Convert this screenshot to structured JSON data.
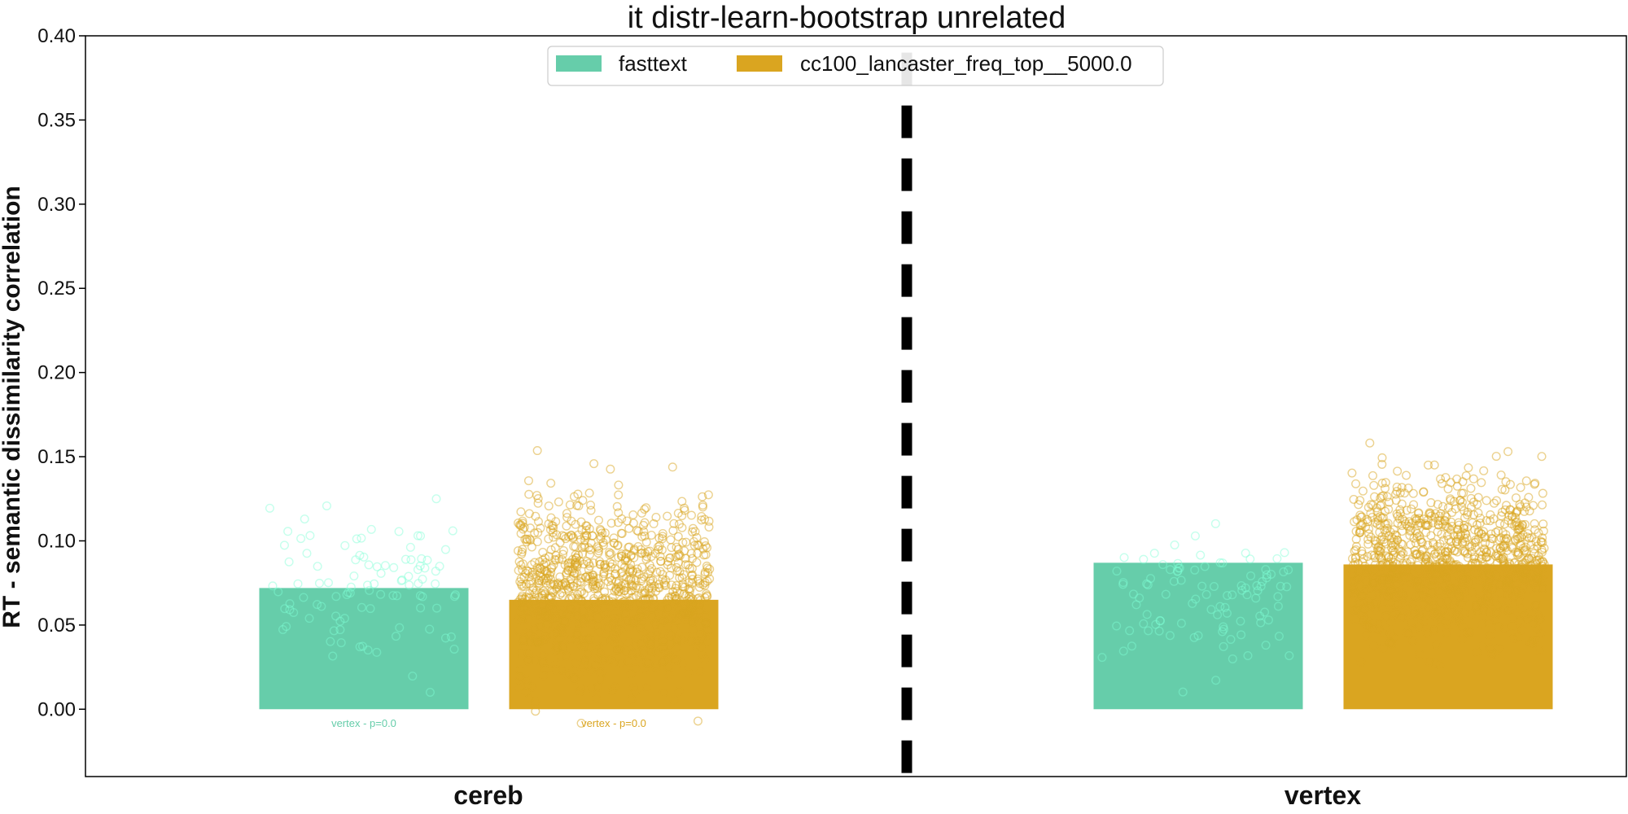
{
  "chart_data": {
    "type": "bar",
    "title": "it distr-learn-bootstrap unrelated",
    "xlabel": "",
    "ylabel": "RT - semantic dissimilarity correlation",
    "ylim": [
      -0.04,
      0.4
    ],
    "yticks": [
      "0.00",
      "0.05",
      "0.10",
      "0.15",
      "0.20",
      "0.25",
      "0.30",
      "0.35",
      "0.40"
    ],
    "grid": false,
    "legend_position": "top-center",
    "categories": [
      "cereb",
      "vertex"
    ],
    "series": [
      {
        "name": "fasttext",
        "color": "#66cdaa",
        "values": [
          0.072,
          0.087
        ],
        "scatter_center": [
          0.07,
          0.07
        ],
        "scatter_spread": [
          0.04,
          0.035
        ],
        "scatter_n": 100
      },
      {
        "name": "cc100_lancaster_freq_top__5000.0",
        "color": "#daa520",
        "values": [
          0.065,
          0.086
        ],
        "scatter_center": [
          0.07,
          0.09
        ],
        "scatter_spread": [
          0.045,
          0.04
        ],
        "scatter_n": 1000
      }
    ],
    "annotations": [
      {
        "text": "vertex - p=0.0",
        "category": "cereb",
        "series": 0,
        "y": -0.008
      },
      {
        "text": "vertex - p=0.0",
        "category": "cereb",
        "series": 1,
        "y": -0.008
      }
    ],
    "divider": {
      "style": "dashed",
      "color": "#000000",
      "between": [
        "cereb",
        "vertex"
      ]
    }
  }
}
